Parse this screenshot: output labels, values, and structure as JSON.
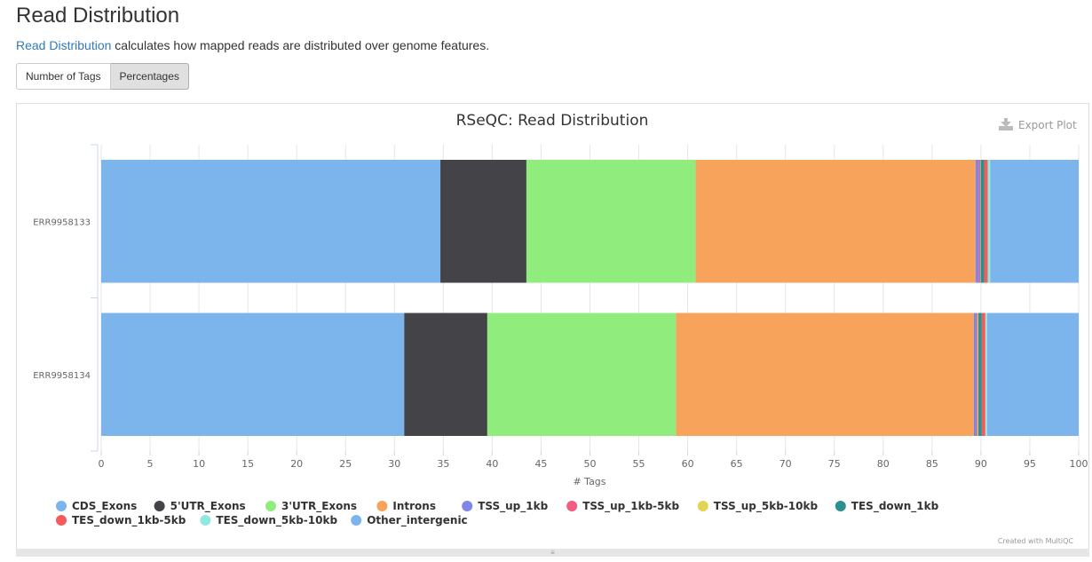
{
  "header": {
    "title": "Read Distribution",
    "link": "Read Distribution",
    "description": " calculates how mapped reads are distributed over genome features."
  },
  "toolbar": {
    "buttons": [
      "Number of Tags",
      "Percentages"
    ],
    "active": "Percentages",
    "export_label": "Export Plot"
  },
  "footer": {
    "credit": "Created with MultiQC"
  },
  "chart_data": {
    "type": "bar",
    "orientation": "horizontal",
    "stacked": true,
    "title": "RSeQC: Read Distribution",
    "xlabel": "# Tags",
    "ylabel": "",
    "xlim": [
      0,
      100
    ],
    "xticks": [
      0,
      5,
      10,
      15,
      20,
      25,
      30,
      35,
      40,
      45,
      50,
      55,
      60,
      65,
      70,
      75,
      80,
      85,
      90,
      95,
      100
    ],
    "grid": true,
    "legend": "bottom",
    "categories": [
      "ERR9958133",
      "ERR9958134"
    ],
    "series": [
      {
        "name": "CDS_Exons",
        "color": "#7cb5ec",
        "values": [
          34.7,
          31.0
        ]
      },
      {
        "name": "5'UTR_Exons",
        "color": "#434348",
        "values": [
          8.8,
          8.5
        ]
      },
      {
        "name": "3'UTR_Exons",
        "color": "#90ed7d",
        "values": [
          17.3,
          19.3
        ]
      },
      {
        "name": "Introns",
        "color": "#f7a35c",
        "values": [
          28.66,
          30.48
        ]
      },
      {
        "name": "TSS_up_1kb",
        "color": "#8085e9",
        "values": [
          0.36,
          0.27
        ]
      },
      {
        "name": "TSS_up_1kb-5kb",
        "color": "#f15c80",
        "values": [
          0.1,
          0.09
        ]
      },
      {
        "name": "TSS_up_5kb-10kb",
        "color": "#e4d354",
        "values": [
          0.05,
          0.09
        ]
      },
      {
        "name": "TES_down_1kb",
        "color": "#2b908f",
        "values": [
          0.36,
          0.36
        ]
      },
      {
        "name": "TES_down_1kb-5kb",
        "color": "#f45b5b",
        "values": [
          0.36,
          0.36
        ]
      },
      {
        "name": "TES_down_5kb-10kb",
        "color": "#91e8e1",
        "values": [
          0.27,
          0.18
        ]
      },
      {
        "name": "Other_intergenic",
        "color": "#7cb5ec",
        "values": [
          9.04,
          9.37
        ]
      }
    ]
  }
}
